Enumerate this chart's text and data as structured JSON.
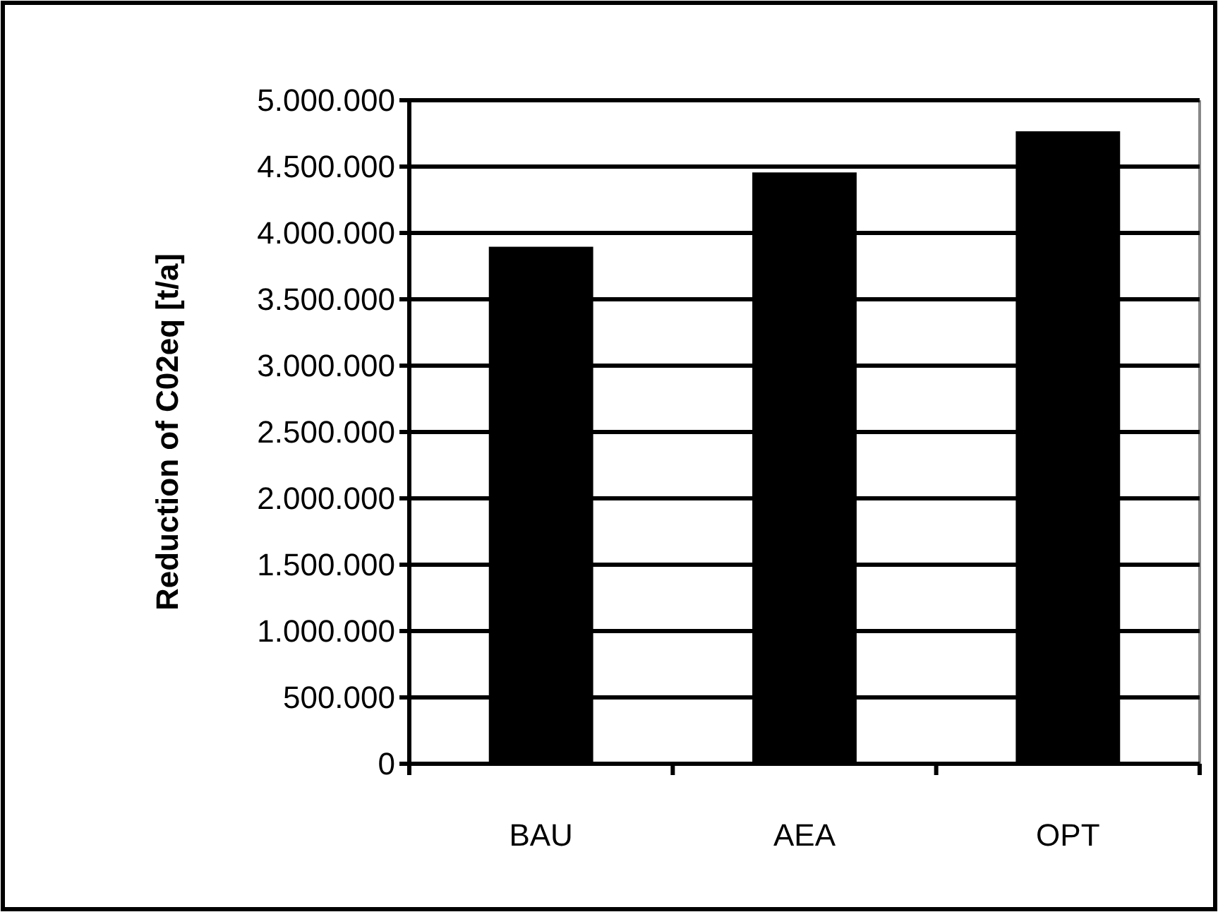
{
  "chart_data": {
    "type": "bar",
    "ylabel": "Reduction of C02eq [t/a]",
    "categories": [
      "BAU",
      "AEA",
      "OPT"
    ],
    "values": [
      3880000,
      4440000,
      4750000
    ],
    "color": "#000000",
    "ylim": [
      0,
      5000000
    ],
    "yticks": [
      {
        "value": 0,
        "label": "0"
      },
      {
        "value": 500000,
        "label": "500.000"
      },
      {
        "value": 1000000,
        "label": "1.000.000"
      },
      {
        "value": 1500000,
        "label": "1.500.000"
      },
      {
        "value": 2000000,
        "label": "2.000.000"
      },
      {
        "value": 2500000,
        "label": "2.500.000"
      },
      {
        "value": 3000000,
        "label": "3.000.000"
      },
      {
        "value": 3500000,
        "label": "3.500.000"
      },
      {
        "value": 4000000,
        "label": "4.000.000"
      },
      {
        "value": 4500000,
        "label": "4.500.000"
      },
      {
        "value": 5000000,
        "label": "5.000.000"
      }
    ],
    "grid": "y"
  }
}
